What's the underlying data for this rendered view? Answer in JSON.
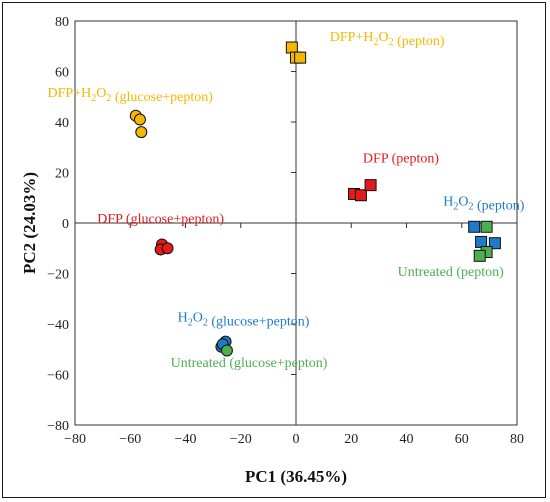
{
  "chart_data": {
    "type": "scatter",
    "title": "",
    "xlabel": "PC1 (36.45%)",
    "ylabel": "PC2 (24.03%)",
    "xlim": [
      -80,
      80
    ],
    "ylim": [
      -80,
      80
    ],
    "x_ticks": [
      -80,
      -60,
      -40,
      -20,
      0,
      20,
      40,
      60,
      80
    ],
    "y_ticks": [
      -80,
      -60,
      -40,
      -20,
      0,
      20,
      40,
      60,
      80
    ],
    "grid": false,
    "colors": {
      "orange": "#F5B700",
      "red": "#E41A1C",
      "blue": "#1E7BC8",
      "green": "#4CAF50"
    },
    "series": [
      {
        "group": "DFP+H2O2 (glucose+pepton)",
        "marker": "circle",
        "color": "#F5B700",
        "points": [
          [
            -58,
            42.5
          ],
          [
            -56.5,
            41
          ],
          [
            -56,
            36
          ]
        ]
      },
      {
        "group": "DFP+H2O2 (pepton)",
        "marker": "square",
        "color": "#F5B700",
        "points": [
          [
            -1.5,
            69.5
          ],
          [
            0,
            65.5
          ],
          [
            1.5,
            65.5
          ]
        ]
      },
      {
        "group": "DFP (glucose+pepton)",
        "marker": "circle",
        "color": "#E41A1C",
        "points": [
          [
            -48.5,
            -8.5
          ],
          [
            -49,
            -10.5
          ],
          [
            -46.5,
            -10
          ]
        ]
      },
      {
        "group": "DFP (pepton)",
        "marker": "square",
        "color": "#E41A1C",
        "points": [
          [
            21,
            11.5
          ],
          [
            23.5,
            11
          ],
          [
            27,
            15
          ]
        ]
      },
      {
        "group": "H2O2 (pepton)",
        "marker": "square",
        "color": "#1E7BC8",
        "points": [
          [
            64.5,
            -1.5
          ],
          [
            67,
            -7.5
          ],
          [
            72,
            -8
          ]
        ]
      },
      {
        "group": "Untreated (pepton)",
        "marker": "square",
        "color": "#4CAF50",
        "points": [
          [
            69,
            -1.5
          ],
          [
            69,
            -11.5
          ],
          [
            66.5,
            -13
          ]
        ]
      },
      {
        "group": "H2O2 (glucose+pepton)",
        "marker": "circle",
        "color": "#1E7BC8",
        "points": [
          [
            -27,
            -49
          ],
          [
            -25.5,
            -47
          ],
          [
            -26.5,
            -48
          ]
        ]
      },
      {
        "group": "Untreated (glucose+pepton)",
        "marker": "circle",
        "color": "#4CAF50",
        "points": [
          [
            -25,
            -50.5
          ]
        ]
      }
    ],
    "annotations": [
      {
        "text": "DFP+H2O2 (glucose+pepton)",
        "color": "#F5B700",
        "x": -60,
        "y": 50
      },
      {
        "text": "DFP+H2O2 (pepton)",
        "color": "#F5B700",
        "x": 33,
        "y": 72
      },
      {
        "text": "DFP (glucose+pepton)",
        "color": "#E41A1C",
        "x": -49,
        "y": 0
      },
      {
        "text": "DFP (pepton)",
        "color": "#E41A1C",
        "x": 38,
        "y": 24
      },
      {
        "text": "H2O2 (pepton)",
        "color": "#1E7BC8",
        "x": 68,
        "y": 7
      },
      {
        "text": "Untreated (pepton)",
        "color": "#4CAF50",
        "x": 56,
        "y": -21
      },
      {
        "text": "H2O2 (glucose+pepton)",
        "color": "#1E7BC8",
        "x": -19,
        "y": -39
      },
      {
        "text": "Untreated (glucose+pepton)",
        "color": "#4CAF50",
        "x": -17,
        "y": -57
      }
    ]
  }
}
